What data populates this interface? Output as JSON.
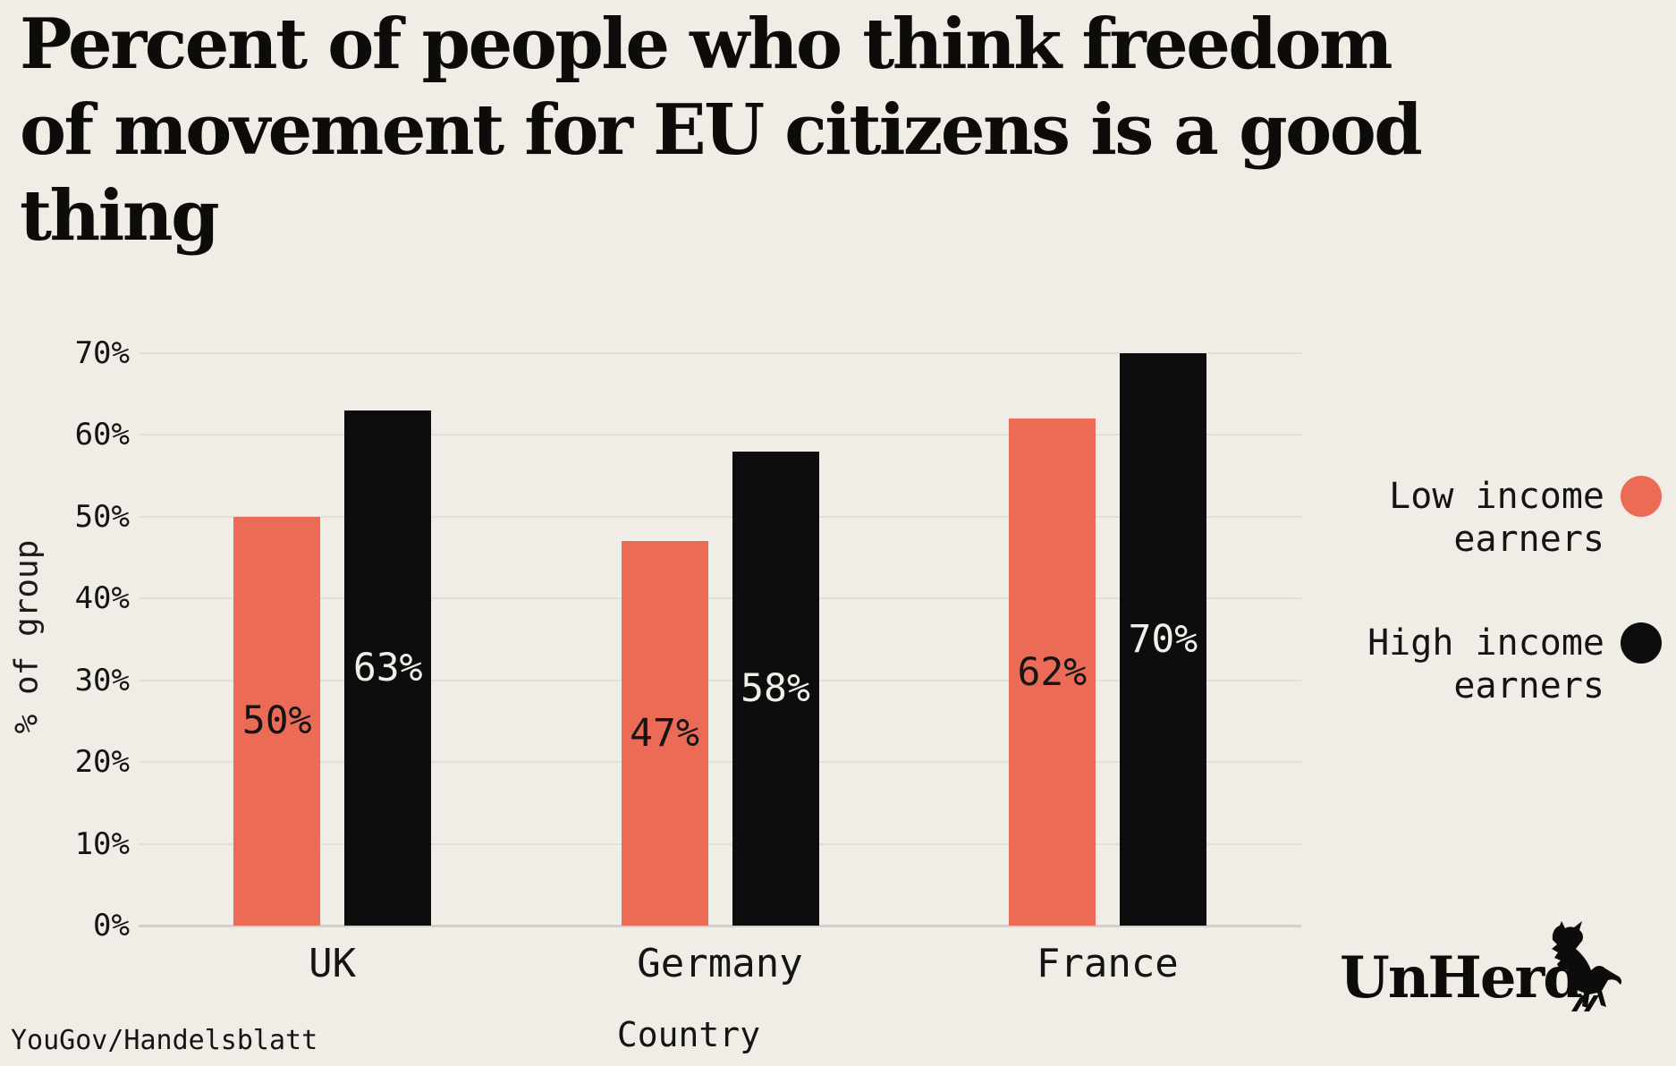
{
  "title": {
    "full": "Percent of people who think freedom of movement for EU citizens is a good thing",
    "lines": [
      "Percent of people who think freedom",
      "of movement for EU citizens is a good",
      "thing"
    ]
  },
  "source": "YouGov/Handelsblatt",
  "brand": {
    "wordmark": "UnHerd",
    "icon": "cow-icon"
  },
  "colors": {
    "background": "#F0EDE6",
    "salmon": "#EC6B56",
    "black_bar": "#0D0D0D",
    "text": "#141414",
    "gridline": "#E2DFD8",
    "axis_line": "#D3D0C9",
    "label_on_black": "#F2EFE8"
  },
  "legend": {
    "items": [
      {
        "name": "low-income-earners",
        "lines": [
          "Low income",
          "earners"
        ],
        "color": "#EC6B56"
      },
      {
        "name": "high-income-earners",
        "lines": [
          "High income",
          "earners"
        ],
        "color": "#0D0D0D"
      }
    ]
  },
  "chart_data": {
    "type": "bar",
    "title": "Percent of people who think freedom of movement for EU citizens is a good thing",
    "categories": [
      "UK",
      "Germany",
      "France"
    ],
    "series": [
      {
        "name": "Low income earners",
        "color": "#EC6B56",
        "values": [
          50,
          47,
          62
        ],
        "labels": [
          "50%",
          "47%",
          "62%"
        ],
        "label_color": "#141414"
      },
      {
        "name": "High income earners",
        "color": "#0D0D0D",
        "values": [
          63,
          58,
          70
        ],
        "labels": [
          "63%",
          "58%",
          "70%"
        ],
        "label_color": "#F2EFE8"
      }
    ],
    "xlabel": "Country",
    "ylabel": "% of group",
    "ylim": [
      0,
      70
    ],
    "yticks": [
      {
        "value": 0,
        "label": "0%"
      },
      {
        "value": 10,
        "label": "10%"
      },
      {
        "value": 20,
        "label": "20%"
      },
      {
        "value": 30,
        "label": "30%"
      },
      {
        "value": 40,
        "label": "40%"
      },
      {
        "value": 50,
        "label": "50%"
      },
      {
        "value": 60,
        "label": "60%"
      },
      {
        "value": 70,
        "label": "70%"
      }
    ],
    "grid": true,
    "legend_position": "right"
  }
}
